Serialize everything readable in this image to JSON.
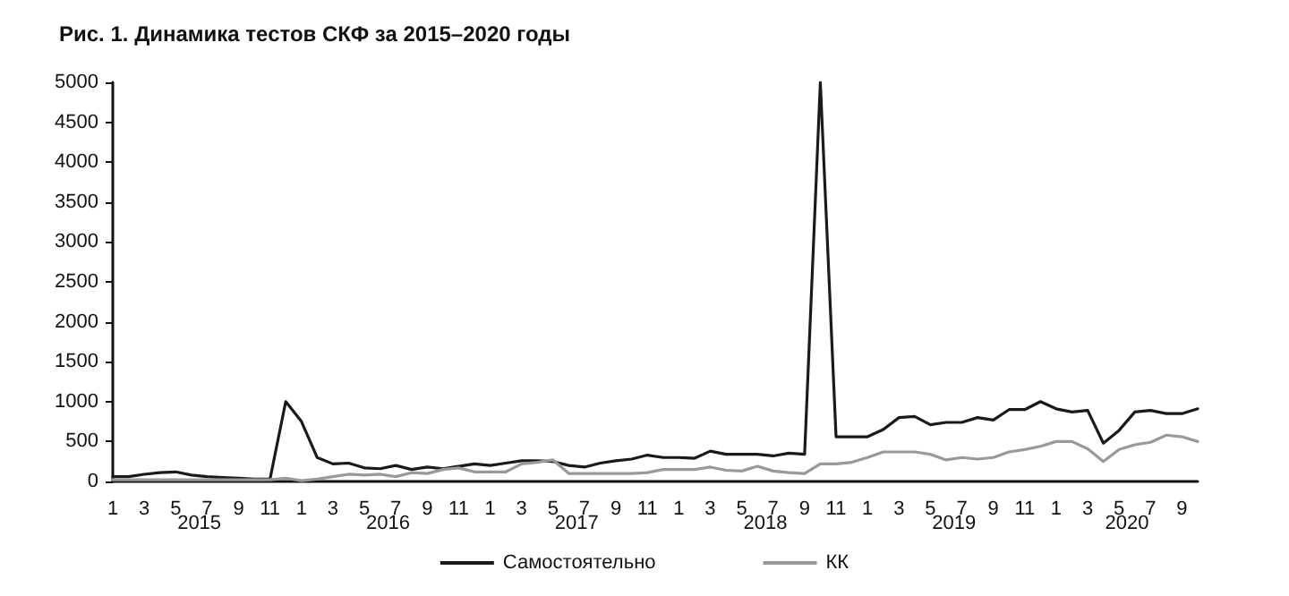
{
  "chart_data": {
    "type": "line",
    "title": "Рис. 1. Динамика тестов СКФ за 2015–2020 годы",
    "categories": [
      "1",
      null,
      "3",
      null,
      "5",
      null,
      "7",
      null,
      "9",
      null,
      "11",
      null,
      "1",
      null,
      "3",
      null,
      "5",
      null,
      "7",
      null,
      "9",
      null,
      "11",
      null,
      "1",
      null,
      "3",
      null,
      "5",
      null,
      "7",
      null,
      "9",
      null,
      "11",
      null,
      "1",
      null,
      "3",
      null,
      "5",
      null,
      "7",
      null,
      "9",
      null,
      "11",
      null,
      "1",
      null,
      "3",
      null,
      "5",
      null,
      "7",
      null,
      "9",
      null,
      "11",
      null,
      "1",
      null,
      "3",
      null,
      "5",
      null,
      "7",
      null,
      "9",
      null
    ],
    "series": [
      {
        "name": "Самостоятельно",
        "color": "#1a1a1a",
        "values": [
          60,
          60,
          90,
          110,
          120,
          80,
          60,
          50,
          40,
          30,
          30,
          1000,
          750,
          300,
          220,
          230,
          170,
          160,
          200,
          150,
          180,
          160,
          190,
          220,
          200,
          230,
          260,
          260,
          250,
          200,
          180,
          230,
          260,
          280,
          330,
          300,
          300,
          290,
          380,
          340,
          340,
          340,
          320,
          355,
          340,
          5000,
          560,
          560,
          560,
          650,
          800,
          815,
          710,
          740,
          740,
          800,
          770,
          900,
          900,
          1000,
          910,
          870,
          890,
          480,
          640,
          870,
          890,
          850,
          850,
          910
        ]
      },
      {
        "name": "КК",
        "color": "#999999",
        "values": [
          20,
          20,
          20,
          20,
          20,
          20,
          20,
          20,
          20,
          20,
          20,
          40,
          10,
          30,
          60,
          90,
          80,
          90,
          60,
          110,
          100,
          150,
          170,
          120,
          120,
          120,
          220,
          240,
          270,
          100,
          100,
          100,
          100,
          100,
          110,
          150,
          150,
          150,
          180,
          140,
          130,
          190,
          130,
          110,
          100,
          220,
          220,
          240,
          300,
          370,
          370,
          370,
          340,
          270,
          300,
          280,
          300,
          370,
          400,
          440,
          500,
          500,
          410,
          250,
          400,
          460,
          490,
          580,
          560,
          500
        ]
      }
    ],
    "ylim": [
      0,
      5000
    ],
    "yticks": [
      0,
      500,
      1000,
      1500,
      2000,
      2500,
      3000,
      3500,
      4000,
      4500,
      5000
    ],
    "annotations": [
      "2015",
      "2016",
      "2017",
      "2018",
      "2019",
      "2020"
    ],
    "legend": "bottom",
    "grid": false,
    "marker": "none",
    "line_style": "solid"
  }
}
